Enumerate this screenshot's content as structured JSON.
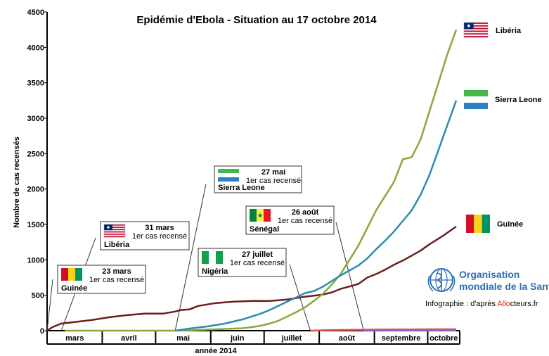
{
  "chart_data": {
    "type": "line",
    "title": "Epidémie d'Ebola - Situation au 17 octobre 2014",
    "ylabel": "Nombre de cas recensés",
    "xlabel": "année 2014",
    "ylim": [
      0,
      4500
    ],
    "yticks": [
      0,
      500,
      1000,
      1500,
      2000,
      2500,
      3000,
      3500,
      4000,
      4500
    ],
    "xlim": [
      0,
      230
    ],
    "months": [
      {
        "label": "mars",
        "start": 0,
        "end": 31
      },
      {
        "label": "avril",
        "start": 31,
        "end": 61
      },
      {
        "label": "mai",
        "start": 61,
        "end": 92
      },
      {
        "label": "juin",
        "start": 92,
        "end": 122
      },
      {
        "label": "juillet",
        "start": 122,
        "end": 153
      },
      {
        "label": "août",
        "start": 153,
        "end": 184
      },
      {
        "label": "septembre",
        "start": 184,
        "end": 214
      },
      {
        "label": "octobre",
        "start": 214,
        "end": 230
      }
    ],
    "series": [
      {
        "name": "Guinée",
        "color": "#6b1d1d",
        "flag": "guinea",
        "x": [
          0,
          3,
          8,
          15,
          25,
          35,
          45,
          55,
          65,
          72,
          75,
          80,
          85,
          95,
          105,
          115,
          125,
          135,
          145,
          155,
          160,
          165,
          168,
          175,
          180,
          185,
          190,
          195,
          200,
          205,
          210,
          215,
          222,
          230
        ],
        "y": [
          0,
          50,
          100,
          120,
          150,
          190,
          220,
          240,
          240,
          270,
          290,
          300,
          350,
          390,
          410,
          420,
          420,
          440,
          480,
          510,
          540,
          590,
          610,
          660,
          750,
          800,
          860,
          930,
          990,
          1060,
          1130,
          1220,
          1330,
          1470
        ]
      },
      {
        "name": "Libéria",
        "color": "#8aa83a",
        "flag": "liberia",
        "x": [
          10,
          30,
          50,
          70,
          80,
          90,
          95,
          100,
          105,
          110,
          115,
          120,
          125,
          130,
          135,
          140,
          145,
          150,
          155,
          160,
          165,
          170,
          175,
          180,
          185,
          190,
          195,
          200,
          205,
          210,
          215,
          220,
          225,
          230
        ],
        "y": [
          0,
          0,
          0,
          0,
          5,
          15,
          20,
          25,
          30,
          35,
          50,
          70,
          100,
          140,
          200,
          260,
          330,
          420,
          520,
          650,
          800,
          1000,
          1200,
          1450,
          1700,
          1900,
          2100,
          2420,
          2450,
          2700,
          3100,
          3500,
          3900,
          4250
        ]
      },
      {
        "name": "Sierra Leone",
        "color": "#2b8cb0",
        "flag": "sierraleone",
        "x": [
          72,
          80,
          90,
          100,
          110,
          115,
          120,
          125,
          130,
          135,
          140,
          145,
          150,
          155,
          160,
          165,
          170,
          175,
          180,
          185,
          190,
          195,
          200,
          205,
          210,
          215,
          220,
          225,
          230
        ],
        "y": [
          0,
          30,
          60,
          100,
          160,
          200,
          240,
          290,
          350,
          410,
          470,
          530,
          560,
          620,
          700,
          780,
          850,
          920,
          1020,
          1150,
          1270,
          1400,
          1550,
          1700,
          1920,
          2200,
          2550,
          2900,
          3250
        ]
      },
      {
        "name": "Nigéria",
        "color": "#d9534f",
        "flag": "nigeria",
        "x": [
          148,
          155,
          165,
          175,
          185,
          195,
          205,
          215,
          225,
          230
        ],
        "y": [
          0,
          5,
          10,
          12,
          15,
          18,
          18,
          20,
          20,
          20
        ]
      },
      {
        "name": "Sénégal",
        "color": "#8a66c0",
        "flag": "senegal",
        "x": [
          178,
          190,
          200,
          210,
          220,
          230
        ],
        "y": [
          0,
          1,
          1,
          1,
          1,
          1
        ]
      }
    ],
    "annotations": [
      {
        "date": "23 mars",
        "text": "1er cas recensé",
        "country": "Guinée",
        "flag": "guinea",
        "x": 0
      },
      {
        "date": "31 mars",
        "text": "1er  cas recensé",
        "country": "Libéria",
        "flag": "liberia",
        "x": 8
      },
      {
        "date": "27 mai",
        "text": "1er cas recensé",
        "country": "Sierra Leone",
        "flag": "sierraleone",
        "x": 72
      },
      {
        "date": "27 juillet",
        "text": "1er  cas recensé",
        "country": "Nigéria",
        "flag": "nigeria",
        "x": 148
      },
      {
        "date": "26 août",
        "text": "1er cas recensé",
        "country": "Sénégal",
        "flag": "senegal",
        "x": 178
      }
    ],
    "legend": [
      {
        "name": "Libéria",
        "flag": "liberia"
      },
      {
        "name": "Sierra Leone",
        "flag": "sierraleone"
      },
      {
        "name": "Guinée",
        "flag": "guinea"
      }
    ]
  },
  "who": {
    "line1": "Organisation",
    "line2": "mondiale de la Santé",
    "credit_prefix": "Infographie : d'après ",
    "credit_brand_a": "Allo",
    "credit_brand_b": "cteurs",
    "credit_suffix": ".fr"
  },
  "colors": {
    "axis": "#000000",
    "who_blue": "#2a6fb8",
    "brand_red": "#e2231a"
  }
}
